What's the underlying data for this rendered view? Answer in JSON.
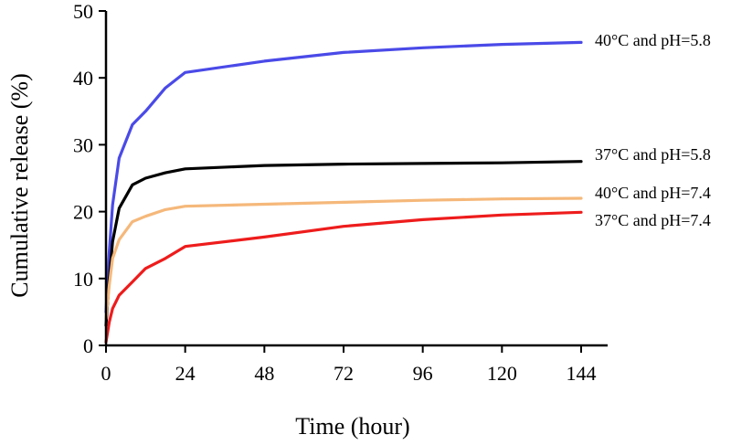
{
  "chart_data": {
    "type": "line",
    "title": "",
    "xlabel": "Time (hour)",
    "ylabel": "Cumulative release (%)",
    "xlim": [
      0,
      150
    ],
    "ylim": [
      0,
      50
    ],
    "xticks": [
      "0",
      "24",
      "48",
      "72",
      "96",
      "120",
      "144"
    ],
    "yticks": [
      "0",
      "10",
      "20",
      "30",
      "40",
      "50"
    ],
    "grid": false,
    "legend_position": "right, at line ends",
    "series": [
      {
        "name": "40°C and pH=5.8",
        "color": "#4a4ae8",
        "x": [
          0,
          1,
          2,
          4,
          8,
          12,
          18,
          24,
          48,
          72,
          96,
          120,
          144
        ],
        "y": [
          5,
          14,
          21,
          28,
          33,
          35,
          38.5,
          40.8,
          42.5,
          43.8,
          44.5,
          45,
          45.3
        ]
      },
      {
        "name": "37°C and pH=5.8",
        "color": "#000000",
        "x": [
          0,
          1,
          2,
          4,
          8,
          12,
          18,
          24,
          48,
          72,
          96,
          120,
          144
        ],
        "y": [
          3,
          10,
          15.5,
          20.5,
          24,
          25,
          25.8,
          26.4,
          26.9,
          27.1,
          27.2,
          27.3,
          27.5
        ]
      },
      {
        "name": "40°C and pH=7.4",
        "color": "#f5b87a",
        "x": [
          0,
          1,
          2,
          4,
          8,
          12,
          18,
          24,
          48,
          72,
          96,
          120,
          144
        ],
        "y": [
          4,
          9,
          13,
          15.8,
          18.5,
          19.3,
          20.3,
          20.8,
          21.1,
          21.4,
          21.7,
          21.9,
          22
        ]
      },
      {
        "name": "37°C and pH=7.4",
        "color": "#ee1c1c",
        "x": [
          0,
          1,
          2,
          4,
          8,
          12,
          18,
          24,
          48,
          72,
          96,
          120,
          144
        ],
        "y": [
          0.5,
          3.5,
          5.5,
          7.5,
          9.5,
          11.5,
          13,
          14.8,
          16.2,
          17.8,
          18.8,
          19.5,
          19.9
        ]
      }
    ]
  }
}
